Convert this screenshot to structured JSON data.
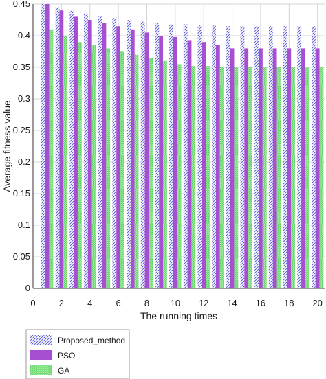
{
  "chart_data": {
    "type": "bar",
    "title": "",
    "xlabel": "The running times",
    "ylabel": "Average fitness value",
    "categories": [
      1,
      2,
      3,
      4,
      5,
      6,
      7,
      8,
      9,
      10,
      11,
      12,
      13,
      14,
      15,
      16,
      17,
      18,
      19,
      20
    ],
    "xlim": [
      0,
      20.5
    ],
    "ylim": [
      0,
      0.45
    ],
    "xticks": [
      0,
      2,
      4,
      6,
      8,
      10,
      12,
      14,
      16,
      18,
      20
    ],
    "yticks": [
      "0",
      "0.05",
      "0.1",
      "0.15",
      "0.2",
      "0.25",
      "0.3",
      "0.35",
      "0.4",
      "0.45"
    ],
    "grid": true,
    "legend_position": "bottom-left, below plot",
    "series": [
      {
        "name": "Proposed_method",
        "fill": "hatch",
        "color": "#5a5ad6",
        "values": [
          0.45,
          0.445,
          0.44,
          0.435,
          0.43,
          0.428,
          0.425,
          0.422,
          0.42,
          0.418,
          0.418,
          0.416,
          0.416,
          0.415,
          0.415,
          0.415,
          0.415,
          0.415,
          0.415,
          0.415
        ]
      },
      {
        "name": "PSO",
        "fill": "solid",
        "color": "#a64fd1",
        "values": [
          0.45,
          0.44,
          0.43,
          0.425,
          0.42,
          0.415,
          0.41,
          0.405,
          0.4,
          0.398,
          0.393,
          0.39,
          0.385,
          0.38,
          0.38,
          0.38,
          0.38,
          0.38,
          0.38,
          0.38
        ]
      },
      {
        "name": "GA",
        "fill": "checker",
        "color": "#7de07d",
        "values": [
          0.41,
          0.4,
          0.39,
          0.385,
          0.38,
          0.375,
          0.37,
          0.365,
          0.36,
          0.355,
          0.352,
          0.352,
          0.35,
          0.35,
          0.35,
          0.35,
          0.35,
          0.35,
          0.35,
          0.35
        ]
      }
    ]
  }
}
